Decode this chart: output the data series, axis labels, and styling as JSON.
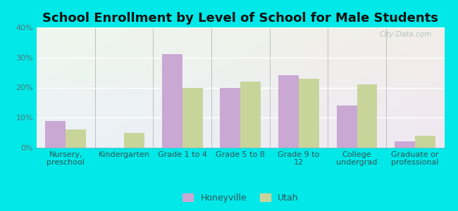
{
  "title": "School Enrollment by Level of School for Male Students",
  "categories": [
    "Nursery,\npreschool",
    "Kindergarten",
    "Grade 1 to 4",
    "Grade 5 to 8",
    "Grade 9 to\n12",
    "College\nundergrad",
    "Graduate or\nprofessional"
  ],
  "honeyville": [
    9,
    0,
    31,
    20,
    24,
    14,
    2
  ],
  "utah": [
    6,
    5,
    20,
    22,
    23,
    21,
    4
  ],
  "honeyville_color": "#c9a8d4",
  "utah_color": "#c8d49a",
  "background_outer": "#00e8e8",
  "ylim": [
    0,
    40
  ],
  "yticks": [
    0,
    10,
    20,
    30,
    40
  ],
  "bar_width": 0.35,
  "legend_labels": [
    "Honeyville",
    "Utah"
  ],
  "watermark": "City-Data.com",
  "title_fontsize": 13,
  "axis_label_fontsize": 8,
  "tick_fontsize": 8,
  "tick_color": "#557777",
  "label_color": "#335555"
}
